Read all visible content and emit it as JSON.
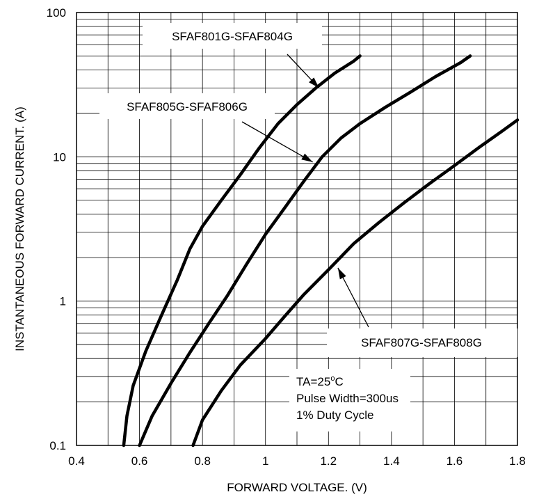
{
  "chart_data": {
    "type": "line",
    "title": "",
    "xlabel": "FORWARD VOLTAGE. (V)",
    "ylabel": "INSTANTANEOUS FORWARD CURRENT. (A)",
    "xlim": [
      0.4,
      1.8
    ],
    "ylim": [
      0.1,
      100
    ],
    "yscale": "log",
    "grid": true,
    "x_ticks": [
      "0.4",
      "0.6",
      "0.8",
      "1",
      "1.2",
      "1.4",
      "1.6",
      "1.8"
    ],
    "y_ticks": [
      "0.1",
      "1",
      "10",
      "100"
    ],
    "series": [
      {
        "name": "SFAF801G-SFAF804G",
        "x": [
          0.55,
          0.56,
          0.58,
          0.62,
          0.67,
          0.72,
          0.76,
          0.8,
          0.86,
          0.92,
          0.98,
          1.04,
          1.1,
          1.16,
          1.22,
          1.28,
          1.3
        ],
        "y": [
          0.1,
          0.16,
          0.26,
          0.45,
          0.8,
          1.4,
          2.3,
          3.3,
          5.0,
          7.5,
          11.5,
          17.0,
          23.0,
          30.0,
          38.0,
          46.0,
          50.0
        ]
      },
      {
        "name": "SFAF805G-SFAF806G",
        "x": [
          0.6,
          0.64,
          0.7,
          0.76,
          0.82,
          0.88,
          0.94,
          1.0,
          1.06,
          1.12,
          1.18,
          1.24,
          1.3,
          1.38,
          1.46,
          1.54,
          1.62,
          1.65
        ],
        "y": [
          0.1,
          0.16,
          0.27,
          0.44,
          0.7,
          1.1,
          1.8,
          2.9,
          4.4,
          6.7,
          10.0,
          13.5,
          17.0,
          22.0,
          28.0,
          36.0,
          45.0,
          50.0
        ]
      },
      {
        "name": "SFAF807G-SFAF808G",
        "x": [
          0.77,
          0.8,
          0.86,
          0.92,
          1.0,
          1.06,
          1.12,
          1.2,
          1.28,
          1.36,
          1.44,
          1.52,
          1.6,
          1.68,
          1.75,
          1.8
        ],
        "y": [
          0.1,
          0.15,
          0.24,
          0.36,
          0.55,
          0.78,
          1.1,
          1.65,
          2.5,
          3.5,
          4.8,
          6.5,
          8.7,
          11.7,
          15.0,
          18.0
        ]
      }
    ],
    "annotations": {
      "conditions": [
        "TA=25°C",
        "Pulse Width=300us",
        "1% Duty Cycle"
      ]
    }
  }
}
